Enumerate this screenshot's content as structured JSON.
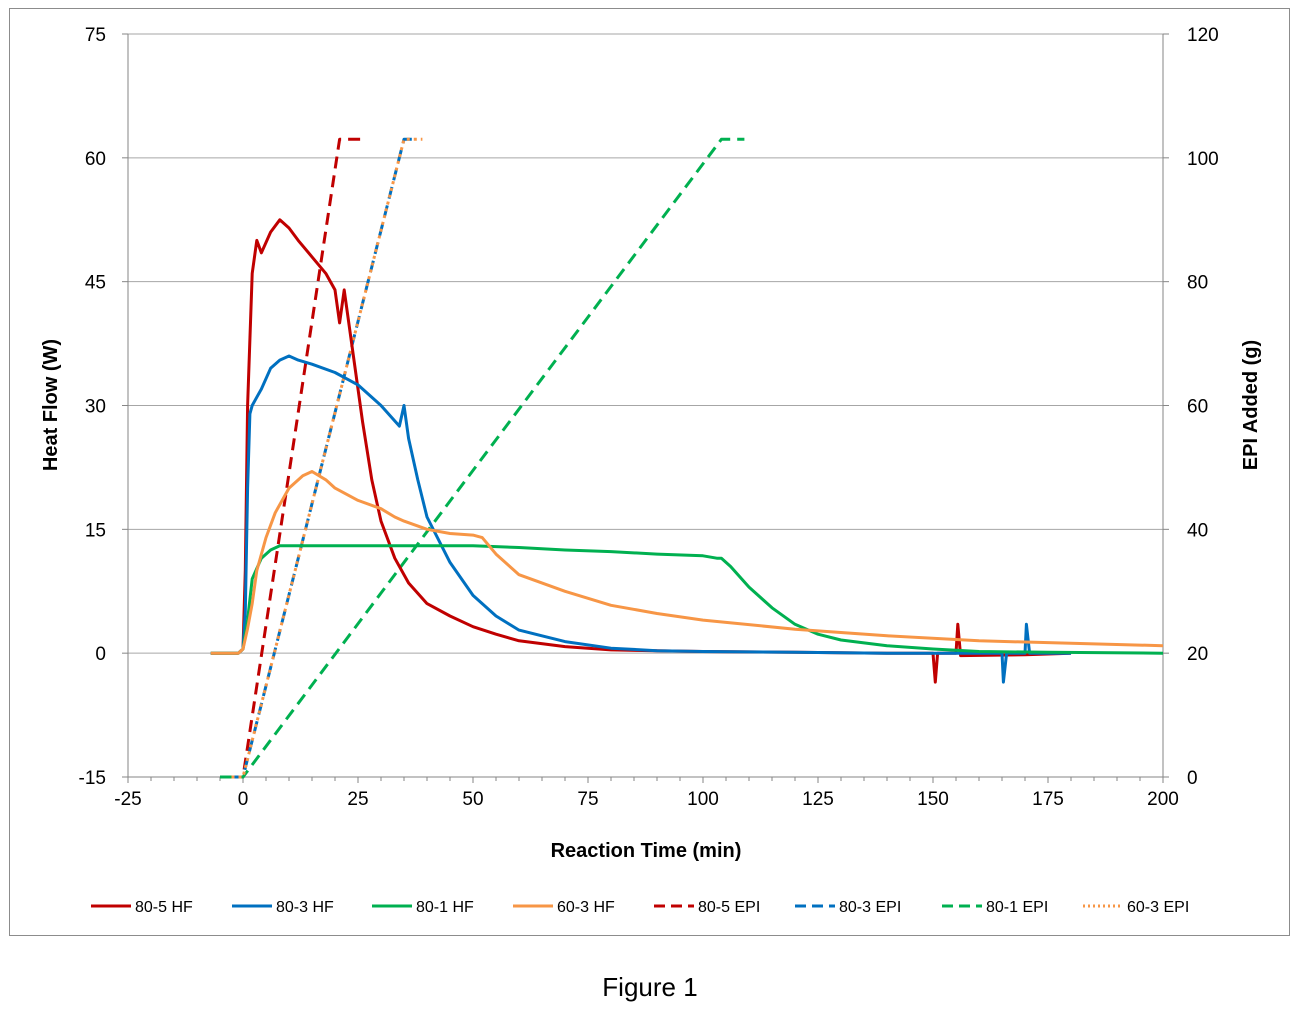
{
  "figure_caption": "Figure 1",
  "chart_data": {
    "type": "line",
    "title": "",
    "xlabel": "Reaction Time (min)",
    "ylabel": "Heat Flow (W)",
    "y2label": "EPI Added (g)",
    "xlim": [
      -25,
      200
    ],
    "ylim": [
      -15,
      75
    ],
    "y2lim": [
      0,
      120
    ],
    "xticks": [
      -25,
      0,
      25,
      50,
      75,
      100,
      125,
      150,
      175,
      200
    ],
    "yticks": [
      -15,
      0,
      15,
      30,
      45,
      60,
      75
    ],
    "y2ticks": [
      0,
      20,
      40,
      60,
      80,
      100,
      120
    ],
    "grid": "horizontal",
    "legend_position": "bottom",
    "colors": {
      "red": "#c00000",
      "blue": "#0070c0",
      "green": "#00b050",
      "orange": "#f79646"
    },
    "series": [
      {
        "name": "80-5 HF",
        "axis": "left",
        "style": "solid",
        "color": "#c00000",
        "x": [
          -7,
          -1,
          0,
          0.5,
          1,
          2,
          3,
          4,
          6,
          8,
          10,
          12,
          15,
          18,
          20,
          21,
          22,
          24,
          26,
          28,
          30,
          33,
          36,
          40,
          45,
          50,
          55,
          60,
          70,
          80,
          90,
          100,
          120,
          140,
          150,
          150.5,
          151,
          155,
          155.4,
          156,
          170,
          180
        ],
        "y": [
          0,
          0,
          0.5,
          10,
          30,
          46,
          50,
          48.5,
          51,
          52.5,
          51.5,
          50,
          48,
          46,
          44,
          40,
          44,
          36,
          28,
          21,
          16,
          11.5,
          8.5,
          6,
          4.5,
          3.2,
          2.3,
          1.5,
          0.8,
          0.4,
          0.3,
          0.2,
          0.1,
          0,
          0,
          -3.5,
          0,
          0,
          3.5,
          -0.3,
          -0.2,
          0
        ]
      },
      {
        "name": "80-3 HF",
        "axis": "left",
        "style": "solid",
        "color": "#0070c0",
        "x": [
          -7,
          -1,
          0,
          0.5,
          1,
          1.5,
          2,
          3,
          4,
          6,
          8,
          10,
          12,
          15,
          20,
          25,
          30,
          34,
          35,
          36,
          38,
          40,
          45,
          50,
          55,
          60,
          70,
          80,
          90,
          100,
          120,
          140,
          160,
          165,
          165.3,
          166,
          170,
          170.3,
          171,
          180
        ],
        "y": [
          0,
          0,
          0.5,
          5,
          20,
          29,
          30,
          31,
          32,
          34.5,
          35.5,
          36,
          35.5,
          35,
          34,
          32.5,
          30,
          27.5,
          30,
          26,
          21,
          16.5,
          11,
          7,
          4.5,
          2.8,
          1.4,
          0.6,
          0.3,
          0.2,
          0.1,
          0,
          0,
          0,
          -3.5,
          0,
          0,
          3.5,
          0,
          0
        ]
      },
      {
        "name": "80-1 HF",
        "axis": "left",
        "style": "solid",
        "color": "#00b050",
        "x": [
          -7,
          -1,
          0,
          1,
          2,
          4,
          6,
          8,
          10,
          15,
          20,
          30,
          40,
          50,
          60,
          70,
          80,
          90,
          100,
          103,
          104,
          106,
          110,
          115,
          120,
          125,
          130,
          140,
          150,
          160,
          175,
          200
        ],
        "y": [
          0,
          0,
          0.5,
          4,
          9,
          11.5,
          12.5,
          13,
          13,
          13,
          13,
          13,
          13,
          13,
          12.8,
          12.5,
          12.3,
          12,
          11.8,
          11.5,
          11.5,
          10.5,
          8,
          5.5,
          3.5,
          2.3,
          1.6,
          0.9,
          0.5,
          0.2,
          0.1,
          0
        ]
      },
      {
        "name": "60-3 HF",
        "axis": "left",
        "style": "solid",
        "color": "#f79646",
        "x": [
          -7,
          -1,
          0,
          1,
          2,
          3,
          5,
          7,
          10,
          13,
          15,
          18,
          20,
          25,
          30,
          33,
          35,
          40,
          45,
          50,
          52,
          55,
          60,
          70,
          80,
          90,
          100,
          120,
          140,
          160,
          180,
          200
        ],
        "y": [
          0,
          0,
          0.5,
          3,
          6,
          10,
          14,
          17,
          20,
          21.5,
          22,
          21,
          20,
          18.5,
          17.5,
          16.5,
          16,
          15,
          14.5,
          14.3,
          14,
          12,
          9.5,
          7.5,
          5.8,
          4.8,
          4,
          2.9,
          2.1,
          1.5,
          1.2,
          0.9
        ]
      },
      {
        "name": "80-5 EPI",
        "axis": "right",
        "style": "dashed",
        "color": "#c00000",
        "x": [
          -2.5,
          0,
          21,
          26
        ],
        "y": [
          0,
          0,
          103,
          103
        ]
      },
      {
        "name": "80-3 EPI",
        "axis": "right",
        "style": "dashed",
        "color": "#0070c0",
        "x": [
          -2.5,
          0,
          35,
          38
        ],
        "y": [
          0,
          0,
          103,
          103
        ]
      },
      {
        "name": "80-1 EPI",
        "axis": "right",
        "style": "dashed",
        "color": "#00b050",
        "x": [
          -5,
          0,
          104,
          109
        ],
        "y": [
          0,
          0,
          103,
          103
        ]
      },
      {
        "name": "60-3 EPI",
        "axis": "right",
        "style": "dotted",
        "color": "#f79646",
        "x": [
          -2.5,
          0,
          35,
          39
        ],
        "y": [
          0,
          0,
          103,
          103
        ]
      }
    ]
  }
}
